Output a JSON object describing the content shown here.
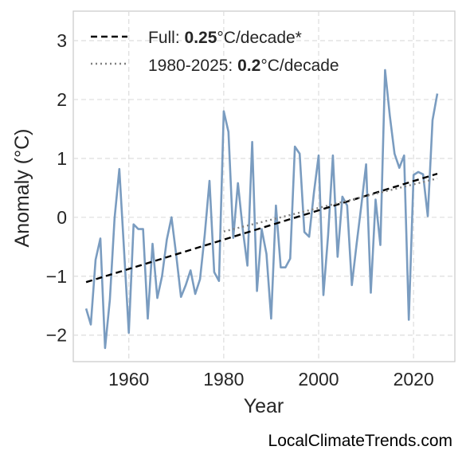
{
  "chart_data": {
    "type": "line",
    "xlabel": "Year",
    "ylabel": "Anomaly (°C)",
    "xlim": [
      1948.3,
      2028.7
    ],
    "ylim": [
      -2.45,
      3.5
    ],
    "xticks": [
      1960,
      1980,
      2000,
      2020
    ],
    "yticks": [
      -2,
      -1,
      0,
      1,
      2,
      3
    ],
    "xtick_labels": [
      "1960",
      "1980",
      "2000",
      "2020"
    ],
    "ytick_labels": [
      "−2",
      "−1",
      "0",
      "1",
      "2",
      "3"
    ],
    "grid": true,
    "legend_position": "top-left",
    "series": [
      {
        "color": "#7a9cc0",
        "style": "solid",
        "x": [
          1951,
          1952,
          1953,
          1954,
          1955,
          1956,
          1957,
          1958,
          1959,
          1960,
          1961,
          1962,
          1963,
          1964,
          1965,
          1966,
          1967,
          1968,
          1969,
          1970,
          1971,
          1972,
          1973,
          1974,
          1975,
          1976,
          1977,
          1978,
          1979,
          1980,
          1981,
          1982,
          1983,
          1984,
          1985,
          1986,
          1987,
          1988,
          1989,
          1990,
          1991,
          1992,
          1993,
          1994,
          1995,
          1996,
          1997,
          1998,
          1999,
          2000,
          2001,
          2002,
          2003,
          2004,
          2005,
          2006,
          2007,
          2008,
          2009,
          2010,
          2011,
          2012,
          2013,
          2014,
          2015,
          2016,
          2017,
          2018,
          2019,
          2020,
          2021,
          2022,
          2023,
          2024,
          2025
        ],
        "y": [
          -1.55,
          -1.82,
          -0.72,
          -0.36,
          -2.22,
          -1.4,
          -0.02,
          0.82,
          -0.55,
          -1.96,
          -0.12,
          -0.2,
          -0.2,
          -1.72,
          -0.45,
          -1.37,
          -1.0,
          -0.38,
          0.0,
          -0.65,
          -1.35,
          -1.15,
          -0.9,
          -1.3,
          -1.05,
          -0.3,
          0.62,
          -0.93,
          -1.08,
          1.8,
          1.45,
          -0.35,
          0.58,
          -0.2,
          -0.82,
          1.28,
          -1.25,
          -0.2,
          -0.62,
          -1.72,
          0.2,
          -0.85,
          -0.85,
          -0.7,
          1.2,
          1.08,
          -0.25,
          -0.33,
          0.42,
          1.05,
          -1.32,
          -0.3,
          1.05,
          -0.67,
          0.35,
          0.2,
          -1.15,
          -0.45,
          0.2,
          0.9,
          -1.28,
          0.3,
          -0.47,
          2.5,
          1.72,
          1.08,
          0.84,
          1.05,
          -1.74,
          0.72,
          0.77,
          0.73,
          0.02,
          1.65,
          2.1
        ]
      },
      {
        "name": "Full",
        "color": "#000000",
        "style": "dashed",
        "x": [
          1951,
          2025
        ],
        "y": [
          -1.1,
          0.74
        ]
      },
      {
        "name": "1980-2025",
        "color": "#808080",
        "style": "dotted",
        "x": [
          1980,
          2025
        ],
        "y": [
          -0.24,
          0.66
        ]
      }
    ],
    "legend": [
      {
        "prefix": "Full: ",
        "value": "0.25",
        "suffix": "°C/decade*"
      },
      {
        "prefix": "1980-2025: ",
        "value": "0.2",
        "suffix": "°C/decade"
      }
    ]
  },
  "credit": "LocalClimateTrends.com"
}
